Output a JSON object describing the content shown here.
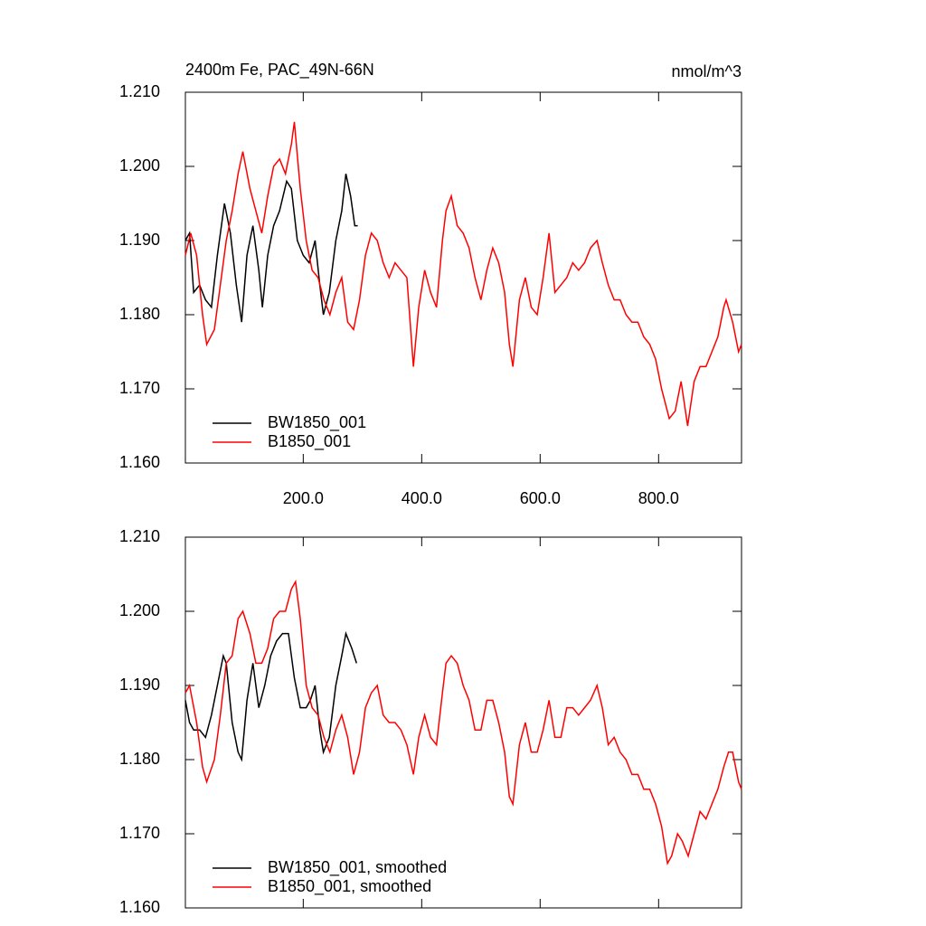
{
  "chart_data": [
    {
      "type": "line",
      "title": "2400m Fe, PAC_49N-66N",
      "right_title": "nmol/m^3",
      "xlim": [
        1,
        940
      ],
      "ylim": [
        1.16,
        1.21
      ],
      "xticks": [
        {
          "value": 200,
          "label": "200.0"
        },
        {
          "value": 400,
          "label": "400.0"
        },
        {
          "value": 600,
          "label": "600.0"
        },
        {
          "value": 800,
          "label": "800.0"
        }
      ],
      "yticks": [
        {
          "value": 1.16,
          "label": "1.160"
        },
        {
          "value": 1.17,
          "label": "1.170"
        },
        {
          "value": 1.18,
          "label": "1.180"
        },
        {
          "value": 1.19,
          "label": "1.190"
        },
        {
          "value": 1.2,
          "label": "1.200"
        },
        {
          "value": 1.21,
          "label": "1.210"
        }
      ],
      "legend": "lower left",
      "series": [
        {
          "name": "BW1850_001",
          "color": "#000000",
          "x": [
            1,
            8,
            15,
            25,
            35,
            45,
            55,
            67,
            77,
            87,
            96,
            105,
            115,
            125,
            131,
            140,
            150,
            160,
            172,
            180,
            190,
            200,
            210,
            220,
            228,
            234,
            244,
            255,
            265,
            272,
            280,
            287,
            292
          ],
          "values": [
            1.19,
            1.191,
            1.183,
            1.184,
            1.182,
            1.181,
            1.188,
            1.195,
            1.191,
            1.184,
            1.179,
            1.188,
            1.192,
            1.186,
            1.181,
            1.188,
            1.192,
            1.194,
            1.198,
            1.197,
            1.19,
            1.188,
            1.187,
            1.19,
            1.184,
            1.18,
            1.183,
            1.19,
            1.194,
            1.199,
            1.196,
            1.192,
            1.192
          ]
        },
        {
          "name": "B1850_001",
          "color": "#ff0000",
          "x": [
            1,
            10,
            20,
            30,
            37,
            50,
            60,
            70,
            80,
            90,
            98,
            110,
            120,
            130,
            140,
            150,
            160,
            170,
            180,
            185,
            195,
            205,
            215,
            225,
            235,
            245,
            255,
            265,
            275,
            285,
            295,
            305,
            315,
            325,
            335,
            345,
            355,
            365,
            375,
            386,
            395,
            405,
            415,
            425,
            435,
            441,
            450,
            460,
            470,
            480,
            490,
            500,
            510,
            520,
            530,
            540,
            548,
            554,
            565,
            575,
            585,
            595,
            605,
            615,
            625,
            635,
            645,
            655,
            665,
            675,
            685,
            696,
            705,
            715,
            725,
            735,
            745,
            755,
            765,
            775,
            785,
            795,
            805,
            818,
            828,
            838,
            849,
            860,
            870,
            880,
            890,
            900,
            910,
            914,
            925,
            935,
            940
          ],
          "values": [
            1.188,
            1.191,
            1.188,
            1.18,
            1.176,
            1.178,
            1.184,
            1.19,
            1.194,
            1.199,
            1.202,
            1.197,
            1.194,
            1.191,
            1.196,
            1.2,
            1.201,
            1.199,
            1.203,
            1.206,
            1.197,
            1.19,
            1.186,
            1.185,
            1.182,
            1.18,
            1.183,
            1.185,
            1.179,
            1.178,
            1.182,
            1.188,
            1.191,
            1.19,
            1.187,
            1.185,
            1.187,
            1.186,
            1.185,
            1.173,
            1.181,
            1.186,
            1.183,
            1.181,
            1.19,
            1.194,
            1.196,
            1.192,
            1.191,
            1.189,
            1.185,
            1.182,
            1.186,
            1.189,
            1.187,
            1.183,
            1.176,
            1.173,
            1.182,
            1.185,
            1.181,
            1.18,
            1.185,
            1.191,
            1.183,
            1.184,
            1.185,
            1.187,
            1.186,
            1.187,
            1.189,
            1.19,
            1.187,
            1.184,
            1.182,
            1.182,
            1.18,
            1.179,
            1.179,
            1.177,
            1.176,
            1.174,
            1.17,
            1.166,
            1.167,
            1.171,
            1.165,
            1.171,
            1.173,
            1.173,
            1.175,
            1.177,
            1.181,
            1.182,
            1.179,
            1.175,
            1.176
          ]
        }
      ]
    },
    {
      "type": "line",
      "xlim": [
        1,
        940
      ],
      "ylim": [
        1.16,
        1.21
      ],
      "yticks": [
        {
          "value": 1.16,
          "label": "1.160"
        },
        {
          "value": 1.17,
          "label": "1.170"
        },
        {
          "value": 1.18,
          "label": "1.180"
        },
        {
          "value": 1.19,
          "label": "1.190"
        },
        {
          "value": 1.2,
          "label": "1.200"
        },
        {
          "value": 1.21,
          "label": "1.210"
        }
      ],
      "legend": "lower left",
      "series": [
        {
          "name": "BW1850_001, smoothed",
          "color": "#000000",
          "x": [
            1,
            8,
            15,
            25,
            35,
            45,
            55,
            65,
            70,
            80,
            90,
            96,
            105,
            115,
            125,
            135,
            145,
            155,
            165,
            175,
            185,
            195,
            205,
            212,
            220,
            228,
            234,
            244,
            255,
            265,
            272,
            282,
            290
          ],
          "values": [
            1.188,
            1.185,
            1.184,
            1.184,
            1.183,
            1.186,
            1.19,
            1.194,
            1.193,
            1.185,
            1.181,
            1.18,
            1.188,
            1.193,
            1.187,
            1.19,
            1.194,
            1.196,
            1.197,
            1.197,
            1.191,
            1.187,
            1.187,
            1.188,
            1.19,
            1.184,
            1.181,
            1.183,
            1.19,
            1.194,
            1.197,
            1.195,
            1.193
          ]
        },
        {
          "name": "B1850_001, smoothed",
          "color": "#ff0000",
          "x": [
            1,
            8,
            20,
            30,
            37,
            50,
            60,
            70,
            80,
            90,
            98,
            110,
            120,
            130,
            140,
            150,
            160,
            170,
            180,
            187,
            195,
            205,
            215,
            225,
            235,
            245,
            255,
            265,
            275,
            285,
            295,
            305,
            315,
            325,
            335,
            345,
            355,
            365,
            375,
            386,
            395,
            405,
            415,
            425,
            435,
            441,
            450,
            460,
            470,
            480,
            490,
            500,
            510,
            520,
            530,
            540,
            548,
            554,
            565,
            575,
            585,
            595,
            605,
            615,
            625,
            635,
            645,
            655,
            665,
            675,
            685,
            696,
            705,
            715,
            725,
            735,
            745,
            755,
            765,
            775,
            785,
            795,
            805,
            815,
            822,
            832,
            840,
            850,
            860,
            870,
            880,
            890,
            900,
            910,
            918,
            925,
            935,
            940
          ],
          "values": [
            1.189,
            1.19,
            1.185,
            1.179,
            1.177,
            1.18,
            1.186,
            1.193,
            1.194,
            1.199,
            1.2,
            1.197,
            1.193,
            1.193,
            1.195,
            1.199,
            1.2,
            1.2,
            1.203,
            1.204,
            1.199,
            1.19,
            1.187,
            1.186,
            1.183,
            1.181,
            1.184,
            1.186,
            1.183,
            1.178,
            1.181,
            1.187,
            1.189,
            1.19,
            1.186,
            1.185,
            1.185,
            1.184,
            1.182,
            1.178,
            1.183,
            1.186,
            1.183,
            1.182,
            1.189,
            1.193,
            1.194,
            1.193,
            1.19,
            1.188,
            1.184,
            1.184,
            1.188,
            1.188,
            1.185,
            1.181,
            1.175,
            1.174,
            1.182,
            1.185,
            1.181,
            1.181,
            1.184,
            1.188,
            1.183,
            1.183,
            1.187,
            1.187,
            1.186,
            1.187,
            1.188,
            1.19,
            1.187,
            1.182,
            1.183,
            1.181,
            1.18,
            1.178,
            1.178,
            1.176,
            1.176,
            1.174,
            1.171,
            1.166,
            1.167,
            1.17,
            1.169,
            1.167,
            1.17,
            1.173,
            1.172,
            1.174,
            1.176,
            1.179,
            1.181,
            1.181,
            1.177,
            1.176
          ]
        }
      ]
    }
  ]
}
